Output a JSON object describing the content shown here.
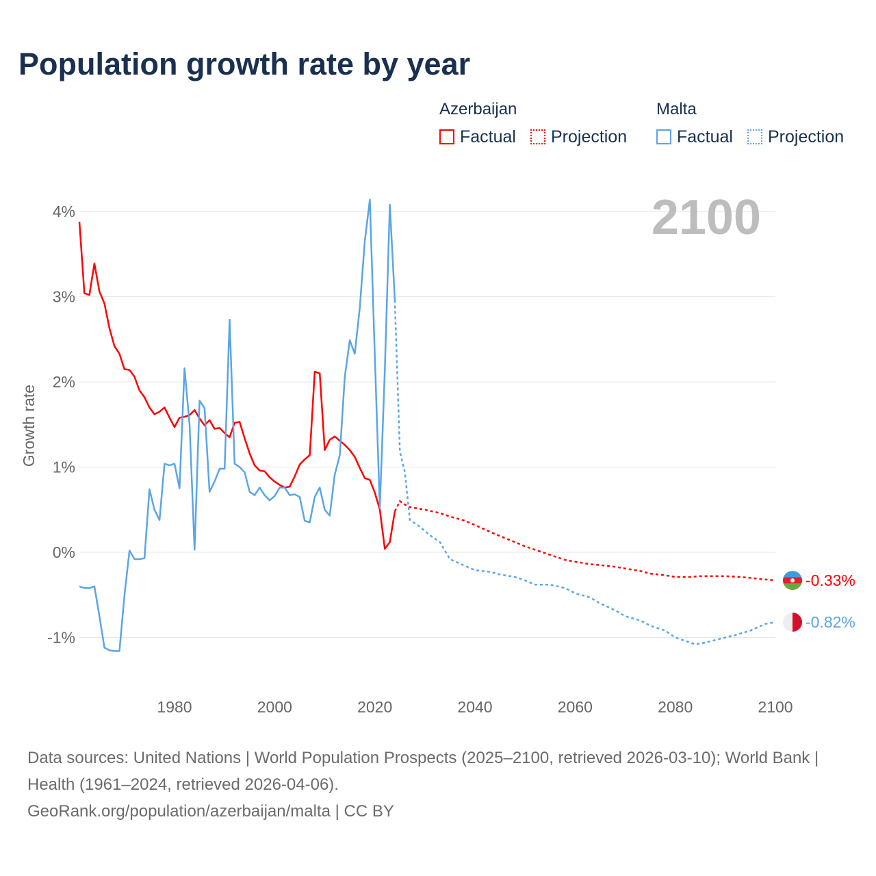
{
  "chart_data": {
    "type": "line",
    "title": "Population growth rate by year",
    "ylabel": "Growth rate",
    "xlabel": "",
    "xlim": [
      1961,
      2100
    ],
    "ylim": [
      -1.5,
      4.3
    ],
    "x_ticks": [
      "1980",
      "2000",
      "2020",
      "2040",
      "2060",
      "2080",
      "2100"
    ],
    "x_tick_values": [
      1980,
      2000,
      2020,
      2040,
      2060,
      2080,
      2100
    ],
    "y_ticks": [
      "-1%",
      "0%",
      "1%",
      "2%",
      "3%",
      "4%"
    ],
    "y_tick_values": [
      -1,
      0,
      1,
      2,
      3,
      4
    ],
    "grid": true,
    "year_label": "2100",
    "legend": {
      "placement": "top-right",
      "groups": [
        {
          "country": "Azerbaijan",
          "factual": "Factual",
          "projection": "Projection"
        },
        {
          "country": "Malta",
          "factual": "Factual",
          "projection": "Projection"
        }
      ]
    },
    "series": [
      {
        "name": "Azerbaijan",
        "color": "#ff0000",
        "end_label": "-0.33%",
        "factual": {
          "x": [
            1961,
            1962,
            1963,
            1964,
            1965,
            1966,
            1967,
            1968,
            1969,
            1970,
            1971,
            1972,
            1973,
            1974,
            1975,
            1976,
            1977,
            1978,
            1979,
            1980,
            1981,
            1982,
            1983,
            1984,
            1985,
            1986,
            1987,
            1988,
            1989,
            1990,
            1991,
            1992,
            1993,
            1994,
            1995,
            1996,
            1997,
            1998,
            1999,
            2000,
            2001,
            2002,
            2003,
            2004,
            2005,
            2006,
            2007,
            2008,
            2009,
            2010,
            2011,
            2012,
            2013,
            2014,
            2015,
            2016,
            2017,
            2018,
            2019,
            2020,
            2021,
            2022,
            2023,
            2024
          ],
          "y": [
            3.88,
            3.04,
            3.02,
            3.39,
            3.06,
            2.92,
            2.63,
            2.42,
            2.33,
            2.15,
            2.14,
            2.06,
            1.9,
            1.82,
            1.7,
            1.62,
            1.65,
            1.7,
            1.58,
            1.47,
            1.58,
            1.59,
            1.61,
            1.67,
            1.57,
            1.49,
            1.55,
            1.45,
            1.46,
            1.4,
            1.35,
            1.52,
            1.53,
            1.34,
            1.16,
            1.02,
            0.96,
            0.95,
            0.88,
            0.83,
            0.79,
            0.76,
            0.77,
            0.89,
            1.03,
            1.09,
            1.14,
            2.12,
            2.1,
            1.2,
            1.32,
            1.36,
            1.31,
            1.26,
            1.2,
            1.12,
            0.99,
            0.87,
            0.85,
            0.7,
            0.5,
            0.04,
            0.12,
            0.48
          ]
        },
        "projection": {
          "x": [
            2024,
            2025,
            2026,
            2027,
            2030,
            2033,
            2035,
            2038,
            2040,
            2043,
            2045,
            2048,
            2050,
            2053,
            2055,
            2058,
            2060,
            2063,
            2065,
            2068,
            2070,
            2073,
            2075,
            2078,
            2080,
            2083,
            2085,
            2088,
            2090,
            2093,
            2095,
            2098,
            2100
          ],
          "y": [
            0.48,
            0.6,
            0.56,
            0.53,
            0.5,
            0.46,
            0.42,
            0.37,
            0.32,
            0.24,
            0.19,
            0.12,
            0.07,
            0.01,
            -0.03,
            -0.09,
            -0.11,
            -0.14,
            -0.15,
            -0.17,
            -0.19,
            -0.22,
            -0.25,
            -0.27,
            -0.29,
            -0.29,
            -0.28,
            -0.28,
            -0.28,
            -0.29,
            -0.3,
            -0.32,
            -0.33
          ]
        }
      },
      {
        "name": "Malta",
        "color": "#5aa5e8",
        "end_label": "-0.82%",
        "factual": {
          "x": [
            1961,
            1962,
            1963,
            1964,
            1965,
            1966,
            1967,
            1968,
            1969,
            1970,
            1971,
            1972,
            1973,
            1974,
            1975,
            1976,
            1977,
            1978,
            1979,
            1980,
            1981,
            1982,
            1983,
            1984,
            1985,
            1986,
            1987,
            1988,
            1989,
            1990,
            1991,
            1992,
            1993,
            1994,
            1995,
            1996,
            1997,
            1998,
            1999,
            2000,
            2001,
            2002,
            2003,
            2004,
            2005,
            2006,
            2007,
            2008,
            2009,
            2010,
            2011,
            2012,
            2013,
            2014,
            2015,
            2016,
            2017,
            2018,
            2019,
            2020,
            2021,
            2022,
            2023,
            2024
          ],
          "y": [
            -0.4,
            -0.42,
            -0.42,
            -0.4,
            -0.75,
            -1.12,
            -1.15,
            -1.16,
            -1.16,
            -0.51,
            0.02,
            -0.08,
            -0.08,
            -0.07,
            0.74,
            0.5,
            0.38,
            1.04,
            1.02,
            1.04,
            0.75,
            2.16,
            1.5,
            0.03,
            1.78,
            1.69,
            0.71,
            0.83,
            0.98,
            0.98,
            2.73,
            1.04,
            1.0,
            0.94,
            0.71,
            0.67,
            0.76,
            0.67,
            0.61,
            0.66,
            0.76,
            0.76,
            0.67,
            0.68,
            0.65,
            0.37,
            0.35,
            0.65,
            0.76,
            0.5,
            0.43,
            0.91,
            1.14,
            2.06,
            2.49,
            2.33,
            2.87,
            3.65,
            4.14,
            2.3,
            0.52,
            2.14,
            4.08,
            2.96
          ]
        },
        "projection": {
          "x": [
            2024,
            2025,
            2026,
            2027,
            2029,
            2031,
            2033,
            2035,
            2038,
            2040,
            2043,
            2045,
            2048,
            2050,
            2052,
            2055,
            2058,
            2060,
            2063,
            2065,
            2068,
            2070,
            2073,
            2075,
            2078,
            2080,
            2082,
            2084,
            2086,
            2088,
            2090,
            2092,
            2095,
            2098,
            2100
          ],
          "y": [
            2.96,
            1.18,
            0.94,
            0.38,
            0.3,
            0.2,
            0.12,
            -0.08,
            -0.16,
            -0.21,
            -0.23,
            -0.26,
            -0.29,
            -0.33,
            -0.38,
            -0.38,
            -0.42,
            -0.48,
            -0.53,
            -0.6,
            -0.68,
            -0.75,
            -0.8,
            -0.86,
            -0.92,
            -1.0,
            -1.04,
            -1.08,
            -1.06,
            -1.03,
            -1.0,
            -0.97,
            -0.92,
            -0.84,
            -0.82
          ]
        }
      }
    ]
  },
  "source": {
    "line1": "Data sources: United Nations | World Population Prospects (2025–2100, retrieved 2026-03-10); World Bank | Health (1961–2024, retrieved 2026-04-06).",
    "line2": "GeoRank.org/population/azerbaijan/malta | CC BY"
  }
}
